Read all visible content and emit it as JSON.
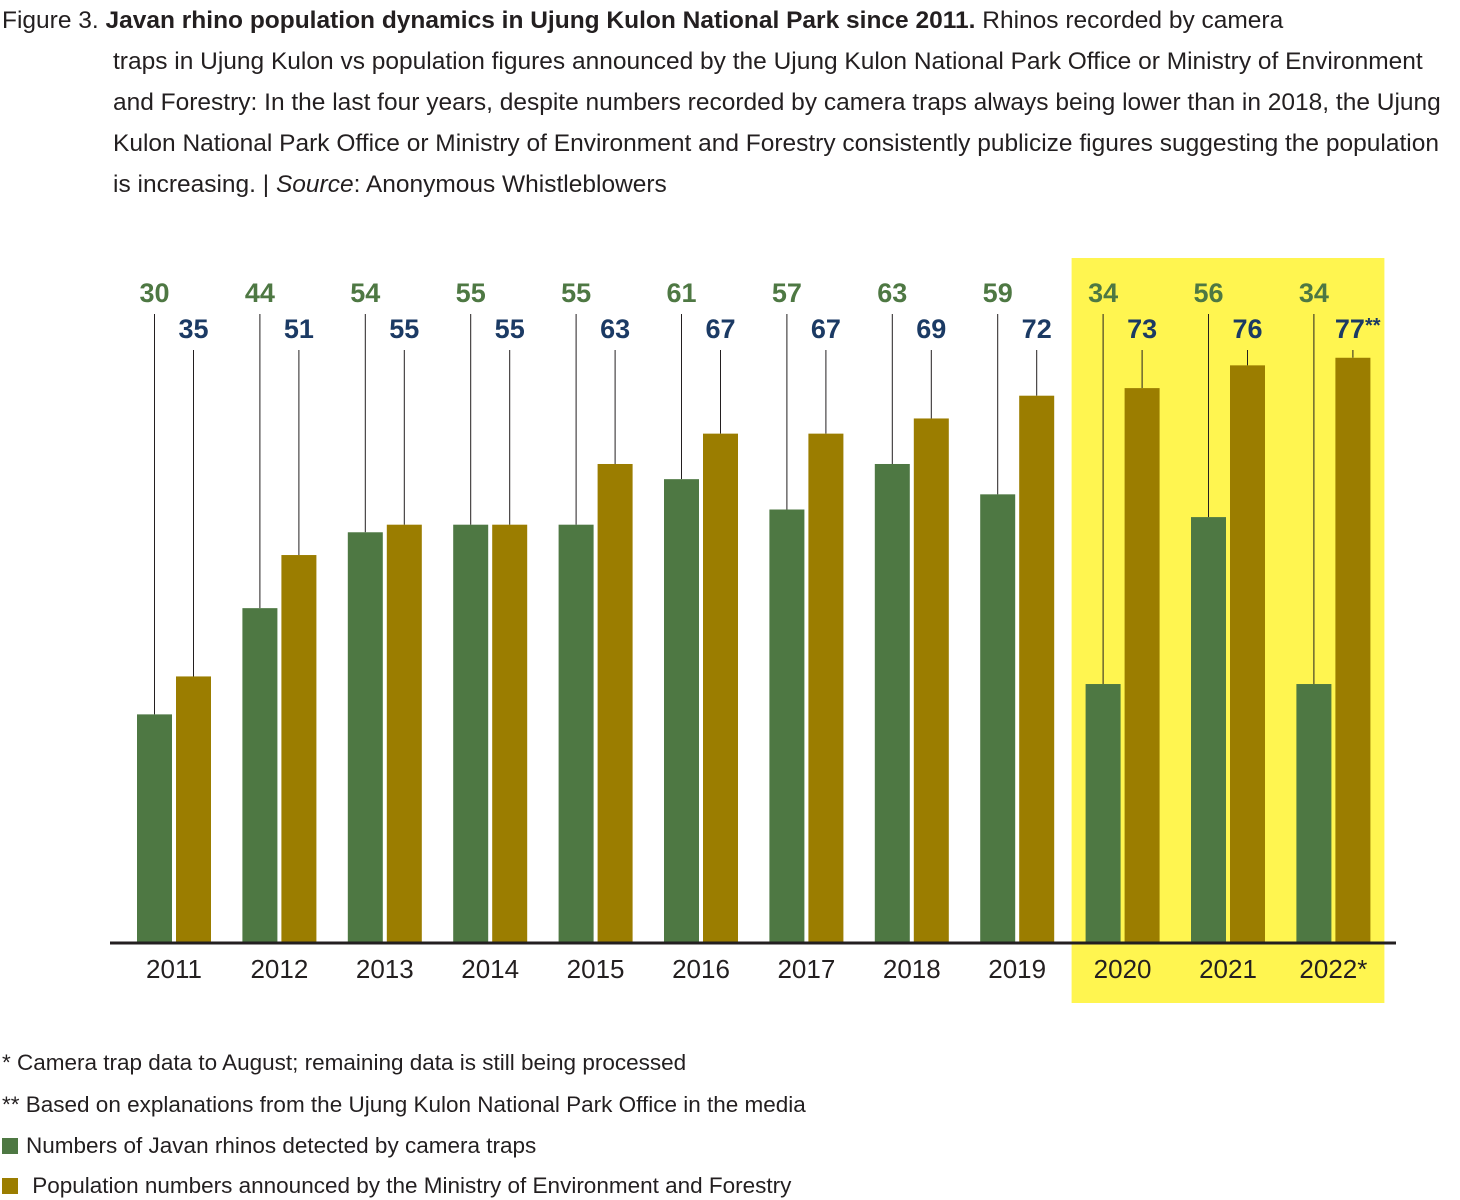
{
  "caption": {
    "prefix": "Figure 3. ",
    "title": "Javan rhino population dynamics in Ujung Kulon National Park since 2011.",
    "line1_rest": " Rhinos recorded by camera",
    "body": "traps in Ujung Kulon vs population figures announced by the Ujung Kulon National Park Office or Ministry of Environment and Forestry: In the last four years, despite numbers recorded by camera traps always being lower than in 2018, the Ujung Kulon National Park Office or Ministry of Environment and Forestry consistently publicize figures suggesting the population is increasing. | ",
    "source_label": "Source",
    "source_text": ": Anonymous Whistleblowers"
  },
  "colors": {
    "camera": "#4e7843",
    "ministry": "#9b7d00",
    "camera_label": "#4e7843",
    "ministry_label": "#1b3a64",
    "highlight": "#fff550",
    "axis": "#231f20"
  },
  "chart_data": {
    "type": "bar",
    "title": "Javan rhino population dynamics in Ujung Kulon National Park since 2011",
    "xlabel": "",
    "ylabel": "",
    "ylim": [
      0,
      80
    ],
    "grid": false,
    "categories": [
      "2011",
      "2012",
      "2013",
      "2014",
      "2015",
      "2016",
      "2017",
      "2018",
      "2019",
      "2020",
      "2021",
      "2022*"
    ],
    "highlighted_categories": [
      "2020",
      "2021",
      "2022*"
    ],
    "series": [
      {
        "name": "Numbers of Javan rhinos detected by camera traps",
        "values": [
          30,
          44,
          54,
          55,
          55,
          61,
          57,
          63,
          59,
          34,
          56,
          34
        ],
        "labels": [
          "30",
          "44",
          "54",
          "55",
          "55",
          "61",
          "57",
          "63",
          "59",
          "34",
          "56",
          "34"
        ]
      },
      {
        "name": "Population numbers announced by the Ministry of Environment and Forestry",
        "values": [
          35,
          51,
          55,
          55,
          63,
          67,
          67,
          69,
          72,
          73,
          76,
          77
        ],
        "labels": [
          "35",
          "51",
          "55",
          "55",
          "63",
          "67",
          "67",
          "69",
          "72",
          "73",
          "76",
          "77"
        ],
        "label_suffixes": [
          "",
          "",
          "",
          "",
          "",
          "",
          "",
          "",
          "",
          "",
          "",
          "**"
        ]
      }
    ]
  },
  "footnotes": {
    "note1": "* Camera trap data to August; remaining data is still being processed",
    "note2": "** Based on explanations from the Ujung Kulon National Park Office in the media"
  },
  "legend": {
    "camera": "Numbers of Javan rhinos detected by camera traps",
    "ministry": " Population numbers announced by the Ministry of Environment and Forestry"
  }
}
